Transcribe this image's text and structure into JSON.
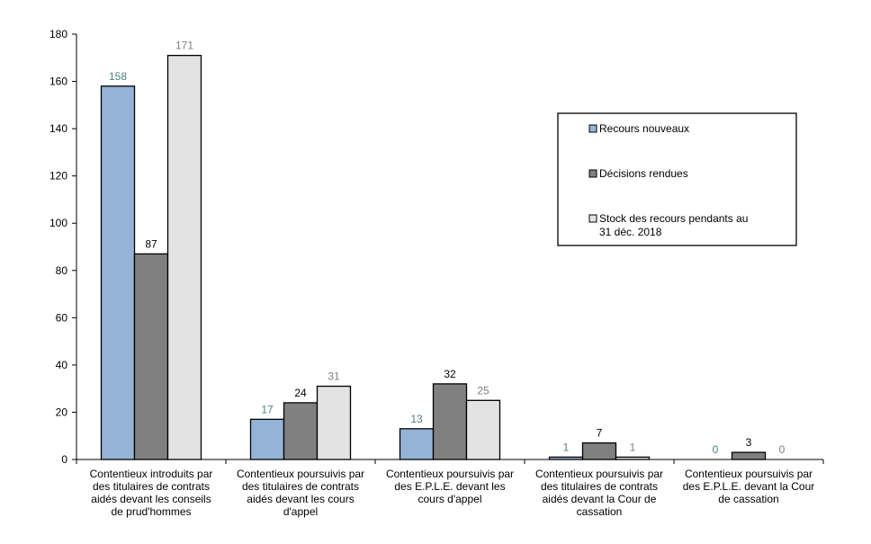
{
  "chart_data": {
    "type": "bar",
    "title": "",
    "xlabel": "",
    "ylabel": "",
    "ylim": [
      0,
      180
    ],
    "yticks": [
      0,
      20,
      40,
      60,
      80,
      100,
      120,
      140,
      160,
      180
    ],
    "grid": false,
    "legend_position": "top-right",
    "categories": [
      [
        "Contentieux introduits par",
        "des titulaires de contrats",
        "aidés devant les conseils",
        "de prud'hommes"
      ],
      [
        "Contentieux poursuivis par",
        "des titulaires de contrats",
        "aidés devant les cours",
        "d'appel"
      ],
      [
        "Contentieux poursuivis par",
        "des E.P.L.E. devant les",
        "cours d'appel"
      ],
      [
        "Contentieux poursuivis par",
        "des titulaires de contrats",
        "aidés devant la Cour de",
        "cassation"
      ],
      [
        "Contentieux poursuivis par",
        "des E.P.L.E. devant la Cour",
        "de cassation"
      ]
    ],
    "series": [
      {
        "name": "Recours nouveaux",
        "values": [
          158,
          17,
          13,
          1,
          0
        ],
        "color": "#95b3d7",
        "label_color": "#4f7f7f"
      },
      {
        "name": "Décisions rendues",
        "values": [
          87,
          24,
          32,
          7,
          3
        ],
        "color": "#808080",
        "label_color": "#000000"
      },
      {
        "name_lines": [
          "Stock des recours pendants au",
          "31 déc. 2018"
        ],
        "values": [
          171,
          31,
          25,
          1,
          0
        ],
        "color": "#e3e3e3",
        "label_color": "#808080"
      }
    ]
  }
}
